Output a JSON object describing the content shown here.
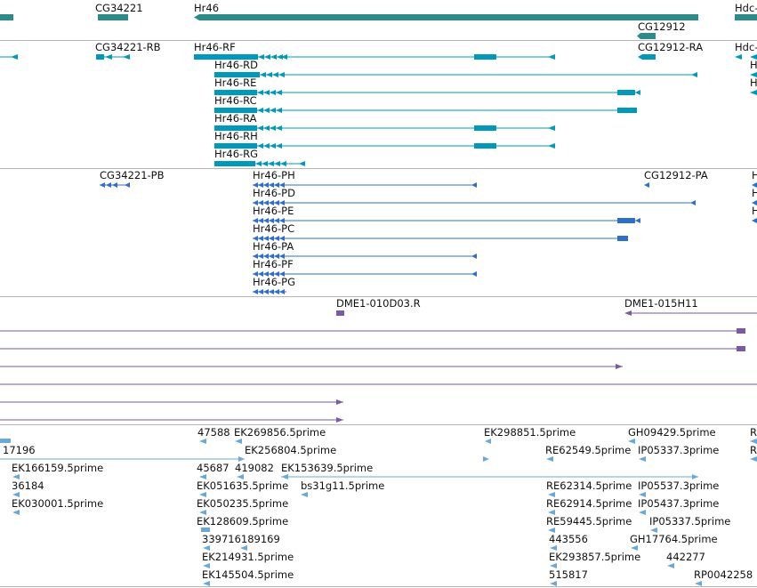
{
  "colors": {
    "gene": "#2e8b8b",
    "mrna": "#0099bb",
    "protein": "#2f6fcc",
    "clone": "#7a5aa8",
    "est": "#6aa8d8",
    "divider": "#b5b5b5"
  },
  "tracks": {
    "genes": [
      {
        "label": "CG34221",
        "strand": "-"
      },
      {
        "label": "Hr46",
        "strand": "-"
      },
      {
        "label": "CG12912",
        "strand": "-"
      },
      {
        "label": "Hdc-",
        "strand": "+"
      }
    ],
    "transcripts": [
      "CG34221-RB",
      "Hr46-RF",
      "Hr46-RD",
      "Hr46-RE",
      "Hr46-RC",
      "Hr46-RA",
      "Hr46-RH",
      "Hr46-RG",
      "CG12912-RA",
      "Hdc-",
      "H",
      "H"
    ],
    "proteins": [
      "CG34221-PB",
      "Hr46-PH",
      "Hr46-PD",
      "Hr46-PE",
      "Hr46-PC",
      "Hr46-PA",
      "Hr46-PF",
      "Hr46-PG",
      "CG12912-PA",
      "H",
      "H",
      "H"
    ],
    "clones": [
      "DME1-010D03.R",
      "DME1-015H11"
    ],
    "ests": [
      "47588",
      "EK269856.5prime",
      "EK298851.5prime",
      "GH09429.5prime",
      "R",
      "17196",
      "EK256804.5prime",
      "RE62549.5prime",
      "IP05337.3prime",
      "R",
      "EK166159.5prime",
      "45687",
      "419082",
      "EK153639.5prime",
      "36184",
      "EK051635.5prime",
      "bs31g11.5prime",
      "RE62314.5prime",
      "IP05537.3prime",
      "EK030001.5prime",
      "EK050235.5prime",
      "RE62914.5prime",
      "IP05437.3prime",
      "EK128609.5prime",
      "RE59445.5prime",
      "IP05337.5prime",
      "339716189169",
      "443556",
      "GH17764.5prime",
      "EK214931.5prime",
      "EK293857.5prime",
      "442277",
      "EK145504.5prime",
      "515817",
      "RP0042258"
    ]
  }
}
